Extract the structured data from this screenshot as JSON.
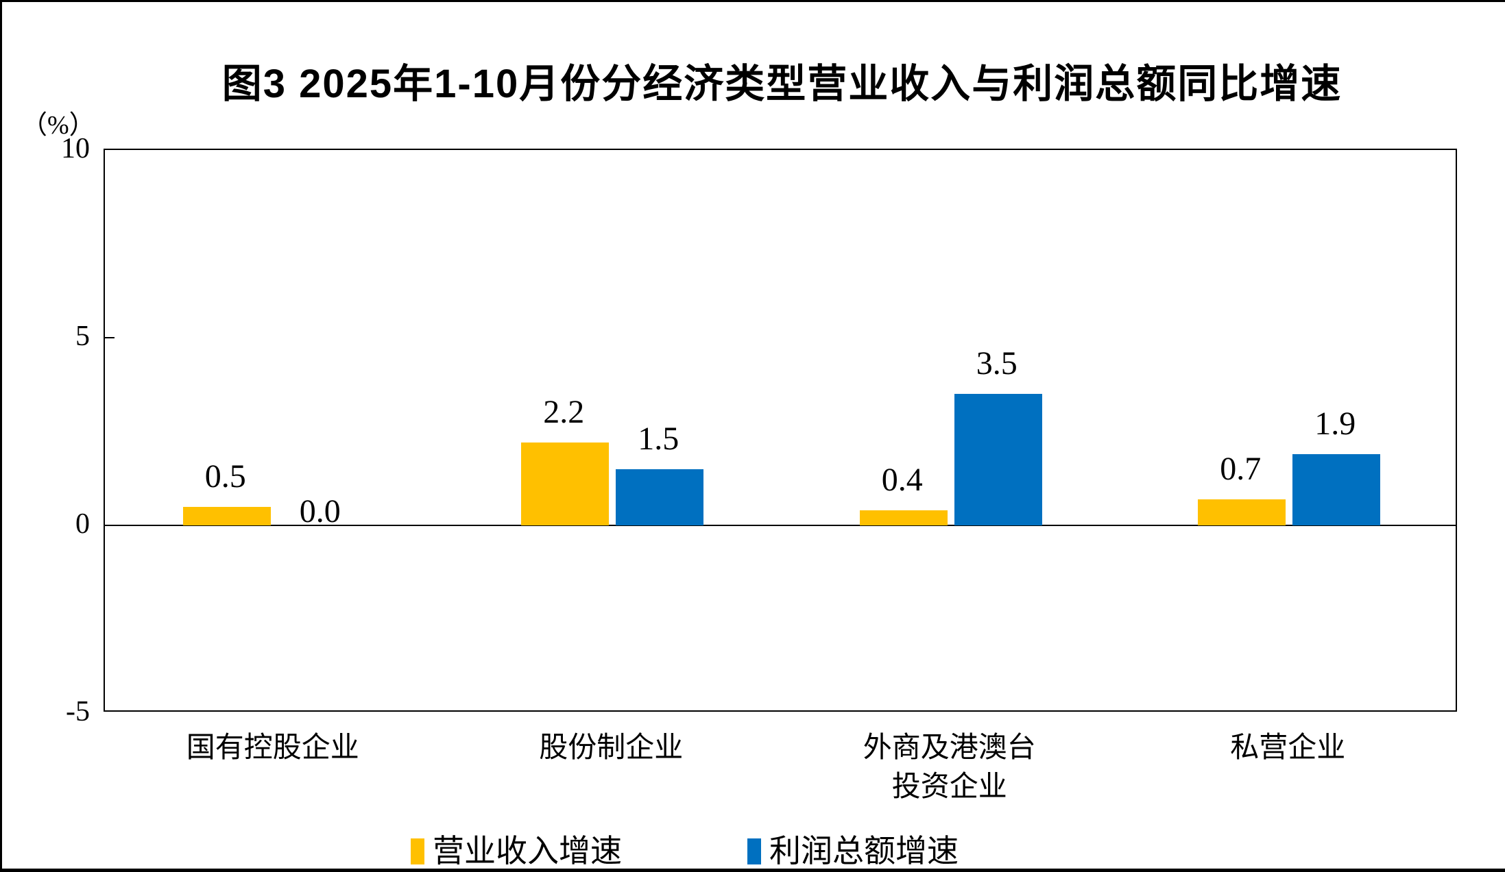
{
  "figure": {
    "background": "#FFFFFF",
    "frame_color": "#000000"
  },
  "chart_data": {
    "type": "bar",
    "title": "图3  2025年1-10月份分经济类型营业收入与利润总额同比增速",
    "unit_label": "（%）",
    "categories": [
      "国有控股企业",
      "股份制企业",
      "外商及港澳台投资企业",
      "私营企业"
    ],
    "category_display_lines": [
      [
        "国有控股企业"
      ],
      [
        "股份制企业"
      ],
      [
        "外商及港澳台",
        "投资企业"
      ],
      [
        "私营企业"
      ]
    ],
    "series": [
      {
        "name": "营业收入增速",
        "color": "#FFC000",
        "values": [
          0.5,
          2.2,
          0.4,
          0.7
        ],
        "value_labels": [
          "0.5",
          "2.2",
          "0.4",
          "0.7"
        ]
      },
      {
        "name": "利润总额增速",
        "color": "#0070C0",
        "values": [
          0.0,
          1.5,
          3.5,
          1.9
        ],
        "value_labels": [
          "0.0",
          "1.5",
          "3.5",
          "1.9"
        ]
      }
    ],
    "y_axis": {
      "min": -5,
      "max": 10,
      "ticks": [
        10,
        5,
        0,
        -5
      ],
      "tick_labels": [
        "10",
        "5",
        "0",
        "-5"
      ]
    },
    "legend_position": "bottom",
    "grid": false
  }
}
